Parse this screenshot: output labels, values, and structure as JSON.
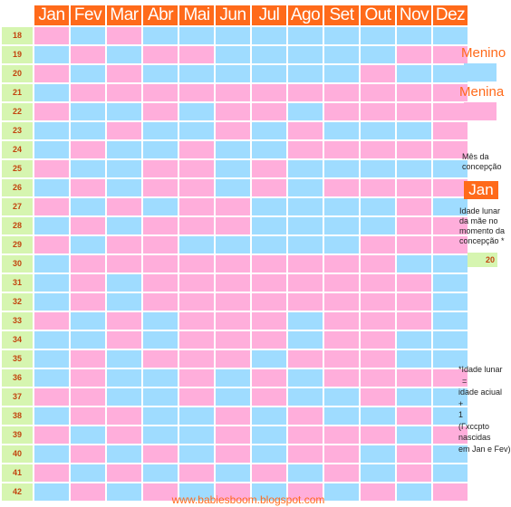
{
  "months": [
    "Jan",
    "Fev",
    "Mar",
    "Abr",
    "Mai",
    "Jun",
    "Jul",
    "Ago",
    "Set",
    "Out",
    "Nov",
    "Dez"
  ],
  "rows": [
    {
      "age": "18",
      "cells": [
        "f",
        "m",
        "f",
        "m",
        "m",
        "m",
        "m",
        "m",
        "m",
        "m",
        "m",
        "m"
      ]
    },
    {
      "age": "19",
      "cells": [
        "m",
        "f",
        "m",
        "f",
        "f",
        "m",
        "m",
        "m",
        "m",
        "m",
        "f",
        "f"
      ]
    },
    {
      "age": "20",
      "cells": [
        "f",
        "m",
        "f",
        "m",
        "m",
        "m",
        "m",
        "m",
        "m",
        "f",
        "m",
        "m"
      ]
    },
    {
      "age": "21",
      "cells": [
        "m",
        "f",
        "f",
        "f",
        "f",
        "f",
        "f",
        "f",
        "f",
        "f",
        "f",
        "f"
      ]
    },
    {
      "age": "22",
      "cells": [
        "f",
        "m",
        "m",
        "f",
        "m",
        "f",
        "f",
        "m",
        "f",
        "f",
        "f",
        "f"
      ]
    },
    {
      "age": "23",
      "cells": [
        "m",
        "m",
        "f",
        "m",
        "m",
        "f",
        "m",
        "f",
        "m",
        "m",
        "m",
        "f"
      ]
    },
    {
      "age": "24",
      "cells": [
        "m",
        "f",
        "m",
        "m",
        "f",
        "m",
        "m",
        "f",
        "f",
        "f",
        "f",
        "f"
      ]
    },
    {
      "age": "25",
      "cells": [
        "f",
        "m",
        "m",
        "f",
        "f",
        "m",
        "f",
        "m",
        "m",
        "m",
        "m",
        "m"
      ]
    },
    {
      "age": "26",
      "cells": [
        "m",
        "f",
        "m",
        "f",
        "f",
        "m",
        "f",
        "m",
        "f",
        "f",
        "f",
        "f"
      ]
    },
    {
      "age": "27",
      "cells": [
        "f",
        "m",
        "f",
        "m",
        "f",
        "f",
        "m",
        "m",
        "m",
        "m",
        "f",
        "m"
      ]
    },
    {
      "age": "28",
      "cells": [
        "m",
        "f",
        "m",
        "f",
        "f",
        "f",
        "m",
        "m",
        "m",
        "m",
        "f",
        "f"
      ]
    },
    {
      "age": "29",
      "cells": [
        "f",
        "m",
        "f",
        "f",
        "m",
        "m",
        "m",
        "m",
        "m",
        "f",
        "f",
        "f"
      ]
    },
    {
      "age": "30",
      "cells": [
        "m",
        "f",
        "f",
        "f",
        "f",
        "f",
        "f",
        "f",
        "f",
        "f",
        "m",
        "m"
      ]
    },
    {
      "age": "31",
      "cells": [
        "m",
        "f",
        "m",
        "f",
        "f",
        "f",
        "f",
        "f",
        "f",
        "f",
        "f",
        "m"
      ]
    },
    {
      "age": "32",
      "cells": [
        "m",
        "f",
        "m",
        "f",
        "f",
        "f",
        "f",
        "f",
        "f",
        "f",
        "f",
        "m"
      ]
    },
    {
      "age": "33",
      "cells": [
        "f",
        "m",
        "f",
        "m",
        "f",
        "f",
        "f",
        "m",
        "f",
        "f",
        "f",
        "m"
      ]
    },
    {
      "age": "34",
      "cells": [
        "m",
        "m",
        "f",
        "m",
        "f",
        "f",
        "f",
        "m",
        "f",
        "f",
        "m",
        "m"
      ]
    },
    {
      "age": "35",
      "cells": [
        "m",
        "f",
        "m",
        "f",
        "f",
        "f",
        "m",
        "f",
        "f",
        "f",
        "m",
        "m"
      ]
    },
    {
      "age": "36",
      "cells": [
        "m",
        "f",
        "m",
        "m",
        "f",
        "m",
        "f",
        "m",
        "f",
        "f",
        "f",
        "f"
      ]
    },
    {
      "age": "37",
      "cells": [
        "f",
        "f",
        "m",
        "m",
        "f",
        "m",
        "f",
        "m",
        "m",
        "f",
        "m",
        "m"
      ]
    },
    {
      "age": "38",
      "cells": [
        "m",
        "f",
        "f",
        "m",
        "m",
        "f",
        "m",
        "f",
        "m",
        "m",
        "f",
        "m"
      ]
    },
    {
      "age": "39",
      "cells": [
        "f",
        "m",
        "f",
        "m",
        "m",
        "f",
        "m",
        "f",
        "f",
        "f",
        "m",
        "f"
      ]
    },
    {
      "age": "40",
      "cells": [
        "m",
        "f",
        "m",
        "f",
        "m",
        "f",
        "m",
        "f",
        "f",
        "m",
        "f",
        "m"
      ]
    },
    {
      "age": "41",
      "cells": [
        "f",
        "m",
        "f",
        "m",
        "f",
        "m",
        "f",
        "m",
        "f",
        "m",
        "f",
        "m"
      ]
    },
    {
      "age": "42",
      "cells": [
        "m",
        "f",
        "m",
        "f",
        "m",
        "f",
        "m",
        "f",
        "m",
        "f",
        "m",
        "f"
      ]
    }
  ],
  "colors": {
    "menino": "#9fdcff",
    "menina": "#ffaedb",
    "header": "#ff6a1a",
    "age_bg": "#d6f5b0"
  },
  "legend": {
    "menino": "Menino",
    "menina": "Menina"
  },
  "side": {
    "conception_label": [
      "Mês da",
      "concepção"
    ],
    "conception_month": "Jan",
    "mother_age_label": [
      "Idade lunar",
      "da mãe no",
      "momento da",
      "concepção *"
    ],
    "mother_age_value": "20",
    "note": [
      "*Idade lunar",
      "=",
      "idade aciual",
      "+",
      "1",
      "(Γxccpto",
      "nascidas",
      "em Jan e Fev)"
    ]
  },
  "footer": "www.babiesboom.blogspot.com"
}
